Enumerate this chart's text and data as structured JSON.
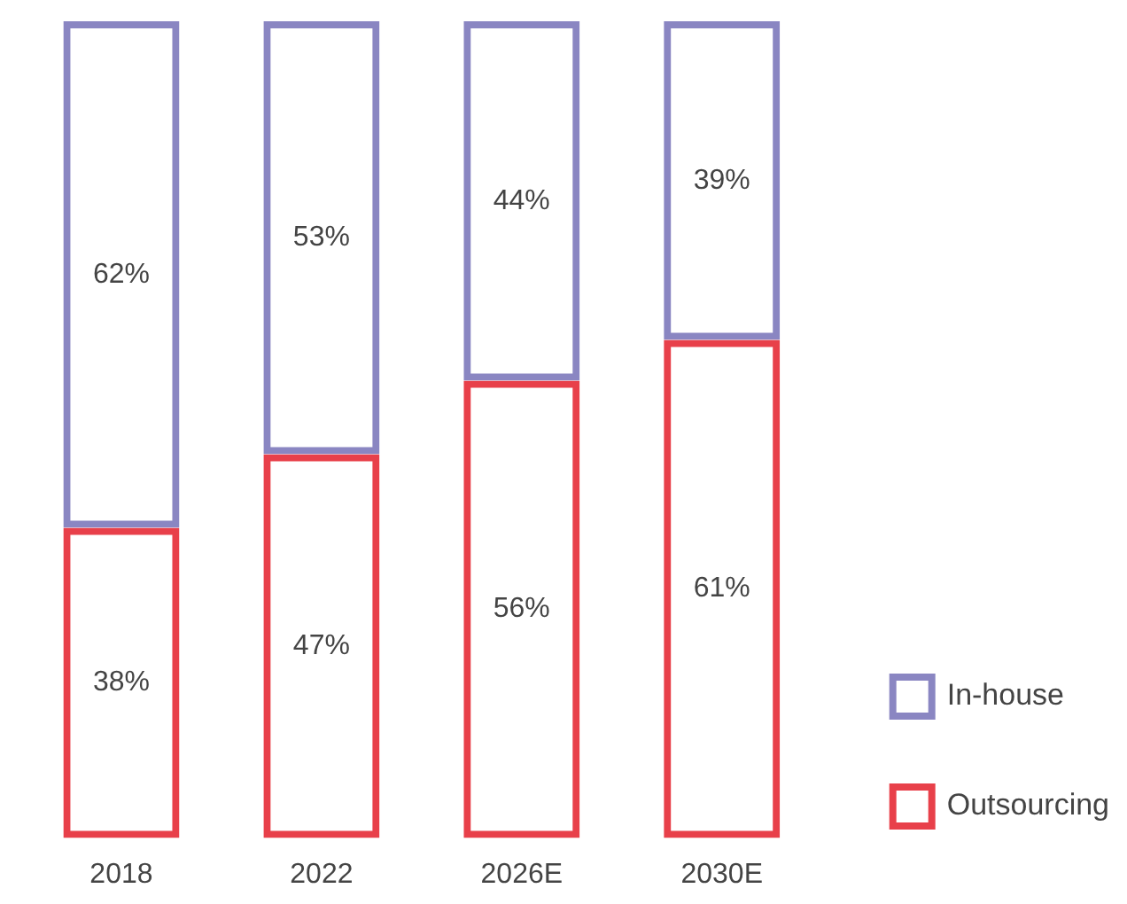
{
  "chart_data": {
    "type": "bar",
    "stacked": true,
    "categories": [
      "2018",
      "2022",
      "2026E",
      "2030E"
    ],
    "series": [
      {
        "name": "Outsourcing",
        "color": "#e8404a",
        "values": [
          38,
          47,
          56,
          61
        ],
        "value_labels": [
          "38%",
          "47%",
          "56%",
          "61%"
        ]
      },
      {
        "name": "In-house",
        "color": "#8a86c2",
        "values": [
          62,
          53,
          44,
          39
        ],
        "value_labels": [
          "62%",
          "53%",
          "44%",
          "39%"
        ]
      }
    ],
    "legend": "bottom right"
  }
}
